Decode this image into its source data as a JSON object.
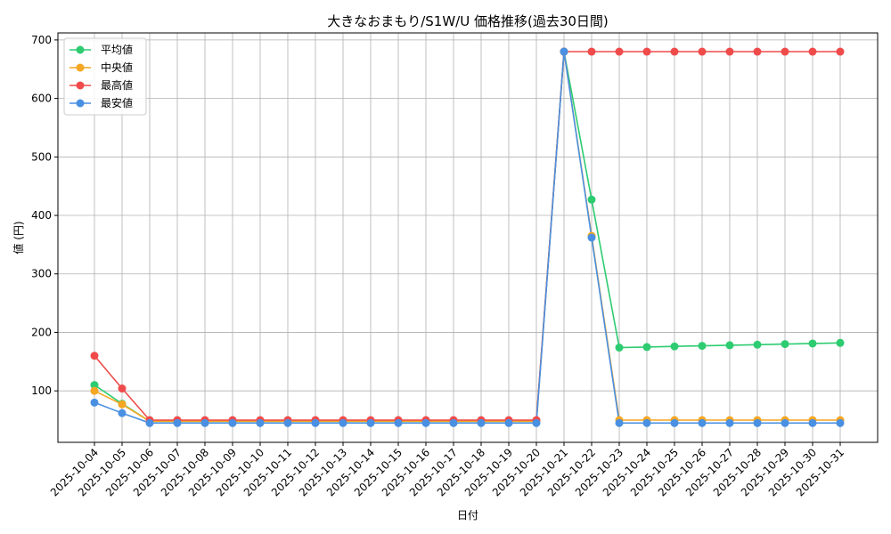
{
  "chart_data": {
    "type": "line",
    "title": "大きなおまもり/S1W/U 価格推移(過去30日間)",
    "xlabel": "日付",
    "ylabel": "値 (円)",
    "ylim": [
      12,
      712
    ],
    "yticks": [
      100,
      200,
      300,
      400,
      500,
      600,
      700
    ],
    "grid": true,
    "legend_position": "top-left",
    "categories": [
      "2025-10-04",
      "2025-10-05",
      "2025-10-06",
      "2025-10-07",
      "2025-10-08",
      "2025-10-09",
      "2025-10-10",
      "2025-10-11",
      "2025-10-12",
      "2025-10-13",
      "2025-10-14",
      "2025-10-15",
      "2025-10-16",
      "2025-10-17",
      "2025-10-18",
      "2025-10-19",
      "2025-10-20",
      "2025-10-21",
      "2025-10-22",
      "2025-10-23",
      "2025-10-24",
      "2025-10-25",
      "2025-10-26",
      "2025-10-27",
      "2025-10-28",
      "2025-10-29",
      "2025-10-30",
      "2025-10-31"
    ],
    "series": [
      {
        "name": "平均値",
        "color": "#2ecc71",
        "values": [
          110,
          78,
          48,
          48,
          48,
          48,
          48,
          48,
          48,
          48,
          48,
          48,
          48,
          48,
          48,
          48,
          48,
          680,
          427,
          174,
          175,
          176,
          177,
          178,
          179,
          180,
          181,
          182
        ]
      },
      {
        "name": "中央値",
        "color": "#f5a623",
        "values": [
          100,
          77,
          48,
          48,
          48,
          48,
          48,
          48,
          48,
          48,
          48,
          48,
          48,
          48,
          48,
          48,
          48,
          680,
          365,
          50,
          50,
          50,
          50,
          50,
          50,
          50,
          50,
          50
        ]
      },
      {
        "name": "最高値",
        "color": "#ef4b4b",
        "values": [
          160,
          104,
          50,
          50,
          50,
          50,
          50,
          50,
          50,
          50,
          50,
          50,
          50,
          50,
          50,
          50,
          50,
          680,
          680,
          680,
          680,
          680,
          680,
          680,
          680,
          680,
          680,
          680
        ]
      },
      {
        "name": "最安値",
        "color": "#4a90e2",
        "values": [
          80,
          62,
          45,
          45,
          45,
          45,
          45,
          45,
          45,
          45,
          45,
          45,
          45,
          45,
          45,
          45,
          45,
          680,
          362,
          45,
          45,
          45,
          45,
          45,
          45,
          45,
          45,
          45
        ]
      }
    ]
  }
}
